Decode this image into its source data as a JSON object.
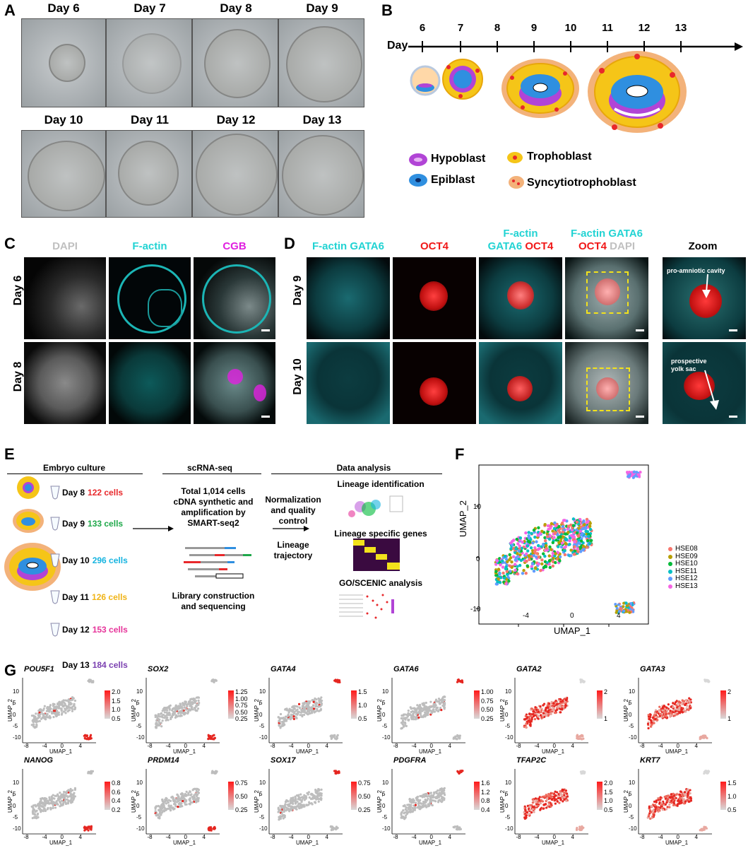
{
  "panels": {
    "A": "A",
    "B": "B",
    "C": "C",
    "D": "D",
    "E": "E",
    "F": "F",
    "G": "G"
  },
  "panelA": {
    "days_row1": [
      "Day 6",
      "Day 7",
      "Day 8",
      "Day 9"
    ],
    "days_row2": [
      "Day 10",
      "Day 11",
      "Day 12",
      "Day 13"
    ]
  },
  "panelB": {
    "axis_label": "Day",
    "ticks": [
      "6",
      "7",
      "8",
      "9",
      "10",
      "11",
      "12",
      "13"
    ],
    "legend": {
      "hypoblast": "Hypoblast",
      "epiblast": "Epiblast",
      "trophoblast": "Trophoblast",
      "syncytiotrophoblast": "Syncytiotrophoblast"
    },
    "colors": {
      "hypoblast": "#b144d6",
      "epiblast": "#2f8fe0",
      "trophoblast": "#f5c518",
      "syncytio": "#f3b27a",
      "red": "#e8282b"
    }
  },
  "panelC": {
    "columns": [
      "DAPI",
      "F-actin",
      "CGB"
    ],
    "col_colors": [
      "#c8c8c8",
      "#22d3d3",
      "#e020e0"
    ],
    "rows": [
      "Day 6",
      "Day 8"
    ]
  },
  "panelD": {
    "col1": "F-actin GATA6",
    "col2": "OCT4",
    "col3_line1": "F-actin",
    "col3_line2a": "GATA6",
    "col3_line2b": "OCT4",
    "col4_line1": "F-actin GATA6",
    "col4_line2a": "OCT4",
    "col4_line2b": "DAPI",
    "col5": "Zoom",
    "rows": [
      "Day 9",
      "Day 10"
    ],
    "annot1": "pro-amniotic cavity",
    "annot2_line1": "prospective",
    "annot2_line2": "yolk sac"
  },
  "panelE": {
    "sections": [
      "Embryo culture",
      "scRNA-seq",
      "Data analysis"
    ],
    "days": [
      {
        "day": "Day 8",
        "count": "122 cells",
        "color": "#e8282b"
      },
      {
        "day": "Day 9",
        "count": "133 cells",
        "color": "#1fa84a"
      },
      {
        "day": "Day 10",
        "count": "296 cells",
        "color": "#16b4e0"
      },
      {
        "day": "Day 11",
        "count": "126 cells",
        "color": "#f0b417"
      },
      {
        "day": "Day 12",
        "count": "153 cells",
        "color": "#e6349a"
      },
      {
        "day": "Day 13",
        "count": "184 cells",
        "color": "#7a3fb0"
      }
    ],
    "scrna_text": [
      "Total 1,014 cells",
      "cDNA synthetic and",
      "amplification by",
      "SMART-seq2"
    ],
    "library": [
      "Library construction",
      "and sequencing"
    ],
    "norm": [
      "Normalization",
      "and quality",
      "control"
    ],
    "lineage_traj": [
      "Lineage",
      "trajectory"
    ],
    "analysis": [
      "Lineage identification",
      "Lineage specific genes",
      "GO/SCENIC analysis"
    ]
  },
  "panelF": {
    "xlabel": "UMAP_1",
    "ylabel": "UMAP_2",
    "xticks": [
      "-4",
      "0",
      "4"
    ],
    "yticks": [
      "10",
      "0",
      "-10"
    ],
    "legend": [
      {
        "name": "HSE08",
        "color": "#f8766d"
      },
      {
        "name": "HSE09",
        "color": "#b79f00"
      },
      {
        "name": "HSE10",
        "color": "#00ba38"
      },
      {
        "name": "HSE11",
        "color": "#00bfc4"
      },
      {
        "name": "HSE12",
        "color": "#619cff"
      },
      {
        "name": "HSE13",
        "color": "#f564e3"
      }
    ]
  },
  "panelG": {
    "xlabel": "UMAP_1",
    "ylabel": "UMAP_2",
    "xticks": [
      "-8",
      "-4",
      "0",
      "4"
    ],
    "yticks": [
      "10",
      "5",
      "0",
      "-5",
      "-10"
    ],
    "genes": [
      {
        "name": "POU5F1",
        "scale": [
          "2.0",
          "1.5",
          "1.0",
          "0.5"
        ],
        "mode": "lowpop"
      },
      {
        "name": "SOX2",
        "scale": [
          "1.25",
          "1.00",
          "0.75",
          "0.50",
          "0.25"
        ],
        "mode": "lowpop"
      },
      {
        "name": "GATA4",
        "scale": [
          "1.5",
          "1.0",
          "0.5"
        ],
        "mode": "top"
      },
      {
        "name": "GATA6",
        "scale": [
          "1.00",
          "0.75",
          "0.50",
          "0.25"
        ],
        "mode": "top"
      },
      {
        "name": "GATA2",
        "scale": [
          "2",
          "1"
        ],
        "mode": "main"
      },
      {
        "name": "GATA3",
        "scale": [
          "2",
          "1"
        ],
        "mode": "main"
      },
      {
        "name": "NANOG",
        "scale": [
          "0.8",
          "0.6",
          "0.4",
          "0.2"
        ],
        "mode": "lowpop"
      },
      {
        "name": "PRDM14",
        "scale": [
          "0.75",
          "0.50",
          "0.25"
        ],
        "mode": "lowpop"
      },
      {
        "name": "SOX17",
        "scale": [
          "0.75",
          "0.50",
          "0.25"
        ],
        "mode": "top"
      },
      {
        "name": "PDGFRA",
        "scale": [
          "1.6",
          "1.2",
          "0.8",
          "0.4"
        ],
        "mode": "top"
      },
      {
        "name": "TFAP2C",
        "scale": [
          "2.0",
          "1.5",
          "1.0",
          "0.5"
        ],
        "mode": "main"
      },
      {
        "name": "KRT7",
        "scale": [
          "1.5",
          "1.0",
          "0.5"
        ],
        "mode": "main"
      }
    ]
  }
}
